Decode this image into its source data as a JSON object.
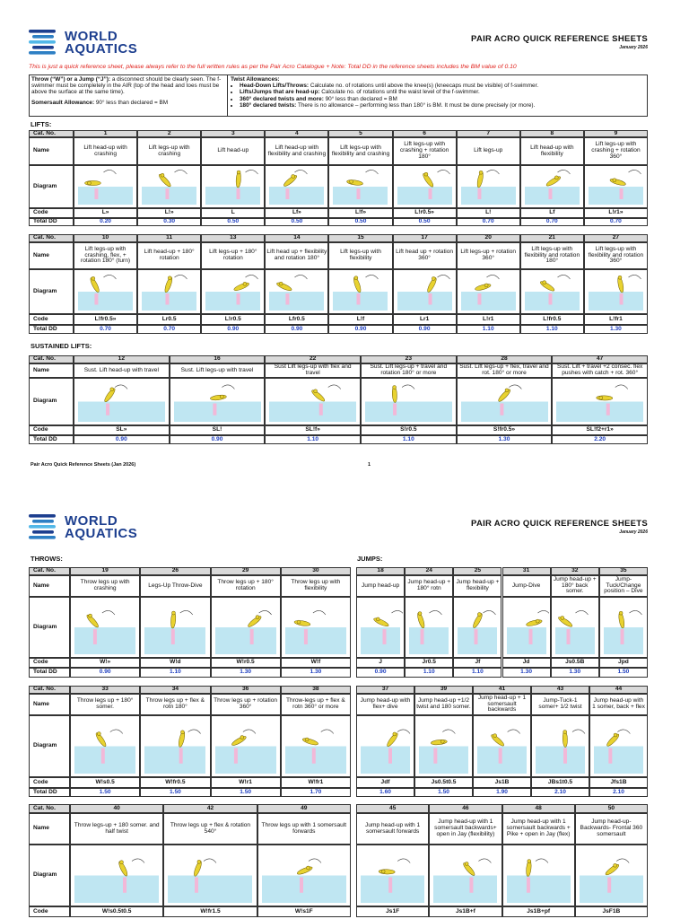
{
  "page1": {
    "logo": {
      "line1": "WORLD",
      "line2": "AQUATICS"
    },
    "title": "PAIR ACRO QUICK REFERENCE SHEETS",
    "date": "January 2026",
    "note": "This is just a quick reference sheet, please always refer to the full written rules as per the Pair Acro Catalogue + Note: Total DD in the reference sheets includes the BM value of 0.10",
    "rules": {
      "left": [
        {
          "lead": "Throw (“W”) or a Jump (“J”):",
          "text": " a disconnect should be clearly seen. The f-swimmer must be completely in the AIR (top of the head and toes must be above the surface at the same time)."
        },
        {
          "lead": "Somersault Allowance:",
          "text": " 90° less than declared = BM"
        }
      ],
      "right_title": "Twist Allowances:",
      "right_items": [
        {
          "lead": "Head-Down Lifts/Throws:",
          "text": " Calculate no. of rotations until above the knee(s) (kneecaps must be visible) of f-swimmer."
        },
        {
          "lead": "Lifts/Jumps that are head-up:",
          "text": " Calculate no. of rotations until the waist level of the f-swimmer."
        },
        {
          "lead": "360° declared twists and more:",
          "text": " 90° less than declared = BM"
        },
        {
          "lead": "180° declared twists:",
          "text": " There is no allowance – performing less than 180° is BM. It must be done precisely (or more)."
        }
      ]
    },
    "lifts_label": "LIFTS:",
    "lifts_tables": [
      {
        "row_labels": [
          "Cat. No.",
          "Name",
          "Diagram",
          "Code",
          "Total DD"
        ],
        "columns": [
          {
            "cat": "1",
            "name": "Lift head-up with crashing",
            "code": "L»",
            "dd": "0.20"
          },
          {
            "cat": "2",
            "name": "Lift legs-up with crashing",
            "code": "L!»",
            "dd": "0.30"
          },
          {
            "cat": "3",
            "name": "Lift head-up",
            "code": "L",
            "dd": "0.50"
          },
          {
            "cat": "4",
            "name": "Lift head-up with flexibility and crashing",
            "code": "Lf»",
            "dd": "0.50"
          },
          {
            "cat": "5",
            "name": "Lift legs-up with flexibility and crashing",
            "code": "L!f»",
            "dd": "0.50"
          },
          {
            "cat": "6",
            "name": "Lift legs-up with crashing + rotation 180°",
            "code": "L!r0.5»",
            "dd": "0.50"
          },
          {
            "cat": "7",
            "name": "Lift legs-up",
            "code": "L!",
            "dd": "0.70"
          },
          {
            "cat": "8",
            "name": "Lift head-up with flexibility",
            "code": "Lf",
            "dd": "0.70"
          },
          {
            "cat": "9",
            "name": "Lift legs-up with crashing + rotation 360°",
            "code": "L!r1»",
            "dd": "0.70"
          }
        ]
      },
      {
        "row_labels": [
          "Cat. No.",
          "Name",
          "Diagram",
          "Code",
          "Total DD"
        ],
        "columns": [
          {
            "cat": "10",
            "name": "Lift legs-up with crashing, flex, + rotation 180° (turn)",
            "code": "L!fr0.5»",
            "dd": "0.70"
          },
          {
            "cat": "11",
            "name": "Lift head-up + 180° rotation",
            "code": "Lr0.5",
            "dd": "0.70"
          },
          {
            "cat": "13",
            "name": "Lift legs-up + 180° rotation",
            "code": "L!r0.5",
            "dd": "0.90"
          },
          {
            "cat": "14",
            "name": "Lift head up + flexibility and rotation 180°",
            "code": "Lfr0.5",
            "dd": "0.90"
          },
          {
            "cat": "15",
            "name": "Lift legs-up with flexibility",
            "code": "L!f",
            "dd": "0.90"
          },
          {
            "cat": "17",
            "name": "Lift head up + rotation 360°",
            "code": "Lr1",
            "dd": "0.90"
          },
          {
            "cat": "20",
            "name": "Lift legs-up + rotation 360°",
            "code": "L!r1",
            "dd": "1.10"
          },
          {
            "cat": "21",
            "name": "Lift legs-up with flexibility and rotation 180°",
            "code": "L!fr0.5",
            "dd": "1.10"
          },
          {
            "cat": "27",
            "name": "Lift legs-up with flexibility and rotation 360°",
            "code": "L!fr1",
            "dd": "1.30"
          }
        ]
      }
    ],
    "sustained_label": "SUSTAINED LIFTS:",
    "sustained_table": {
      "row_labels": [
        "Cat. No.",
        "Name",
        "Diagram",
        "Code",
        "Total DD"
      ],
      "columns": [
        {
          "cat": "12",
          "name": "Sust. Lift head-up with travel",
          "code": "SL»",
          "dd": "0.90"
        },
        {
          "cat": "16",
          "name": "Sust. Lift legs-up with travel",
          "code": "SL!",
          "dd": "0.90"
        },
        {
          "cat": "22",
          "name": "Sust Lift legs-up with flex and travel",
          "code": "SL!f»",
          "dd": "1.10"
        },
        {
          "cat": "23",
          "name": "Sust. Lift legs-up + travel and rotation 180° or more",
          "code": "S!r0.5",
          "dd": "1.10"
        },
        {
          "cat": "28",
          "name": "Sust. Lift legs-up + flex, travel and rot. 180° or more",
          "code": "S!fr0.5»",
          "dd": "1.30"
        },
        {
          "cat": "47",
          "name": "Sust. Lift + travel +2 consec. flex pushes with catch + rot. 360°",
          "code": "SL!f2+r1»",
          "dd": "2.20"
        }
      ]
    },
    "footer": "Pair Acro Quick Reference Sheets (Jan 2026)",
    "page_number": "1"
  },
  "page2": {
    "logo": {
      "line1": "WORLD",
      "line2": "AQUATICS"
    },
    "title": "PAIR ACRO QUICK REFERENCE SHEETS",
    "date": "January 2026",
    "throws_label": "THROWS:",
    "jumps_label": "JUMPS:",
    "throws_tables": [
      {
        "row_labels": [
          "Cat. No.",
          "Name",
          "Diagram",
          "Code",
          "Total DD"
        ],
        "columns": [
          {
            "cat": "19",
            "name": "Throw legs up with crashing",
            "code": "W!»",
            "dd": "0.90"
          },
          {
            "cat": "26",
            "name": "Legs-Up Throw-Dive",
            "code": "W!d",
            "dd": "1.10"
          },
          {
            "cat": "29",
            "name": "Throw legs up + 180° rotation",
            "code": "W!r0.5",
            "dd": "1.30"
          },
          {
            "cat": "30",
            "name": "Throw legs up with flexibility",
            "code": "W!f",
            "dd": "1.30"
          }
        ]
      },
      {
        "row_labels": [
          "Cat. No.",
          "Name",
          "Diagram",
          "Code",
          "Total DD"
        ],
        "columns": [
          {
            "cat": "33",
            "name": "Throw legs up + 180° somer.",
            "code": "W!s0.5",
            "dd": "1.50"
          },
          {
            "cat": "34",
            "name": "Throw legs up + flex & rotn 180°",
            "code": "W!fr0.5",
            "dd": "1.50"
          },
          {
            "cat": "36",
            "name": "Throw legs up + rotation 360°",
            "code": "W!r1",
            "dd": "1.50"
          },
          {
            "cat": "38",
            "name": "Throw-legs up + flex & rotn 360° or more",
            "code": "W!fr1",
            "dd": "1.70"
          }
        ]
      },
      {
        "row_labels": [
          "Cat. No.",
          "Name",
          "Diagram",
          "Code"
        ],
        "columns": [
          {
            "cat": "40",
            "name": "Throw legs-up + 180 somer. and half twist",
            "code": "W!s0.5t0.5"
          },
          {
            "cat": "42",
            "name": "Throw legs up + flex & rotation 540°",
            "code": "W!fr1.5"
          },
          {
            "cat": "49",
            "name": "Throw legs up with 1 somersault forwards",
            "code": "W!s1F"
          }
        ]
      }
    ],
    "jumps_tables": [
      {
        "columns": [
          {
            "cat": "18",
            "name": "Jump head-up",
            "code": "J",
            "dd": "0.90"
          },
          {
            "cat": "24",
            "name": "Jump head-up + 180° rotn",
            "code": "Jr0.5",
            "dd": "1.10"
          },
          {
            "cat": "25",
            "name": "Jump head-up + flexibility",
            "code": "Jf",
            "dd": "1.10"
          },
          {
            "cat": "31",
            "name": "Jump-Dive",
            "code": "Jd",
            "dd": "1.30"
          },
          {
            "cat": "32",
            "name": "Jump head-up + 180° back somer.",
            "code": "Js0.5B",
            "dd": "1.30"
          },
          {
            "cat": "35",
            "name": "Jump-Tuck/Change position – Dive",
            "code": "Jpd",
            "dd": "1.50"
          }
        ]
      },
      {
        "columns": [
          {
            "cat": "37",
            "name": "Jump head-up with flex+ dive",
            "code": "Jdf",
            "dd": "1.60"
          },
          {
            "cat": "39",
            "name": "Jump head-up +1/2 twist and 180 somer.",
            "code": "Js0.5t0.5",
            "dd": "1.50"
          },
          {
            "cat": "41",
            "name": "Jump head-up + 1 somersault backwards",
            "code": "Js1B",
            "dd": "1.90"
          },
          {
            "cat": "43",
            "name": "Jump-Tuck-1 somer+ 1/2 twist",
            "code": "JBs1t0.5",
            "dd": "2.10"
          },
          {
            "cat": "44",
            "name": "Jump head-up with 1 somer, back + flex",
            "code": "Jfs1B",
            "dd": "2.10"
          }
        ]
      },
      {
        "columns": [
          {
            "cat": "45",
            "name": "Jump head-up with 1 somersault forwards",
            "code": "Js1F"
          },
          {
            "cat": "46",
            "name": "Jump head-up with 1 somersault backwards+ open in Jay (flexibility)",
            "code": "Js1B+f"
          },
          {
            "cat": "48",
            "name": "Jump head-up with 1 somersault backwards + Pike + open in Jay (flex)",
            "code": "Js1B+pf"
          },
          {
            "cat": "50",
            "name": "Jump head-up-Backwards- Frontal 360 somersault",
            "code": "JsF1B"
          }
        ]
      }
    ]
  }
}
